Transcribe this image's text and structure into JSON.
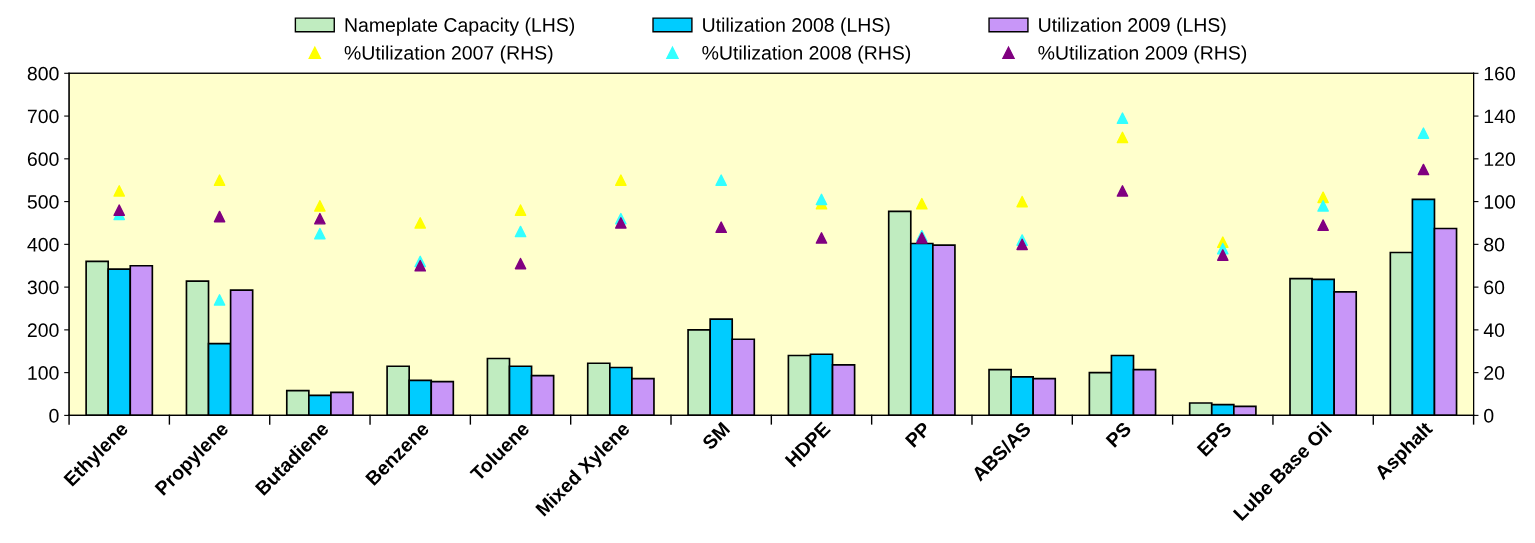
{
  "chart_data": {
    "type": "bar",
    "categories": [
      "Ethylene",
      "Propylene",
      "Butadiene",
      "Benzene",
      "Toluene",
      "Mixed Xylene",
      "SM",
      "HDPE",
      "PP",
      "ABS/AS",
      "PS",
      "EPS",
      "Lube Base Oil",
      "Asphalt"
    ],
    "series": [
      {
        "name": "Nameplate Capacity (LHS)",
        "color": "#c0ecc0",
        "values": [
          360,
          314,
          58,
          115,
          133,
          122,
          200,
          140,
          477,
          107,
          100,
          29,
          320,
          381
        ]
      },
      {
        "name": "Utilization 2008 (LHS)",
        "color": "#00ccff",
        "values": [
          342,
          168,
          47,
          82,
          115,
          112,
          225,
          143,
          402,
          90,
          140,
          25,
          318,
          505
        ]
      },
      {
        "name": "Utilization 2009 (LHS)",
        "color": "#c896f8",
        "values": [
          350,
          293,
          54,
          79,
          93,
          86,
          178,
          118,
          398,
          86,
          107,
          21,
          289,
          437
        ]
      },
      {
        "name": "%Utilization 2007 (RHS)",
        "type": "scatter",
        "axis": "y2",
        "color": "#ffff00",
        "values": [
          105,
          110,
          98,
          90,
          96,
          110,
          null,
          99,
          99,
          100,
          130,
          81,
          102,
          null
        ]
      },
      {
        "name": "%Utilization 2008 (RHS)",
        "type": "scatter",
        "axis": "y2",
        "color": "#33ffff",
        "values": [
          94,
          54,
          85,
          72,
          86,
          92,
          110,
          101,
          84,
          82,
          139,
          78,
          98,
          132
        ]
      },
      {
        "name": "%Utilization 2009 (RHS)",
        "type": "scatter",
        "axis": "y2",
        "color": "#800080",
        "values": [
          96,
          93,
          92,
          70,
          71,
          90,
          88,
          83,
          83,
          80,
          105,
          75,
          89,
          115
        ]
      }
    ],
    "ylim": [
      0,
      800
    ],
    "yticks": [
      0,
      100,
      200,
      300,
      400,
      500,
      600,
      700,
      800
    ],
    "y2lim": [
      0,
      160
    ],
    "y2ticks": [
      0,
      20,
      40,
      60,
      80,
      100,
      120,
      140,
      160
    ],
    "marker": "triangle",
    "grid": false,
    "legend": "top"
  }
}
